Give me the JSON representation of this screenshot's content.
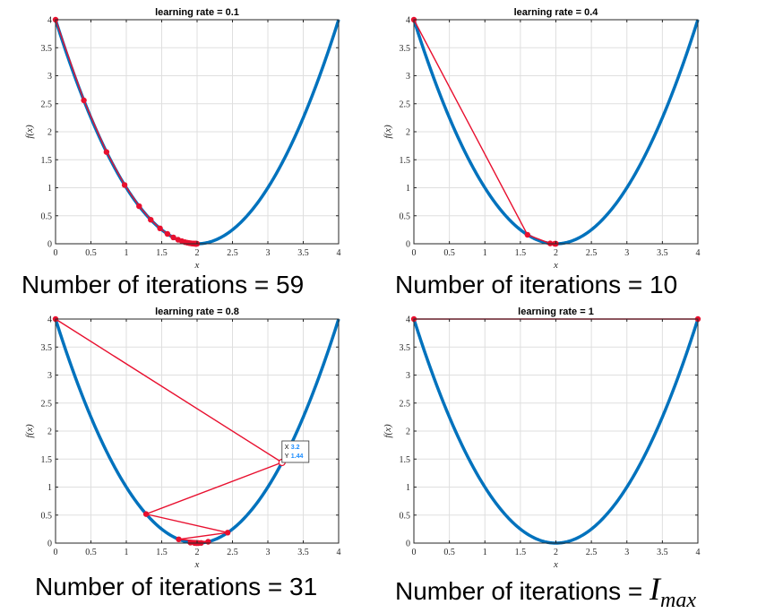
{
  "chart_data": [
    {
      "type": "line",
      "title": "learning rate = 0.1",
      "xlabel": "x",
      "ylabel": "f(x)",
      "xlim": [
        0,
        4
      ],
      "ylim": [
        0,
        4
      ],
      "xticks": [
        "0",
        "0.5",
        "1",
        "1.5",
        "2",
        "2.5",
        "3",
        "3.5",
        "4"
      ],
      "yticks": [
        "0",
        "0.5",
        "1",
        "1.5",
        "2",
        "2.5",
        "3",
        "3.5",
        "4"
      ],
      "grid": true,
      "curve": {
        "function": "(x-2)^2",
        "color": "#0072BD"
      },
      "path": {
        "color": "#E8102F",
        "x": [
          0,
          0.4,
          0.72,
          0.976,
          1.181,
          1.345,
          1.476,
          1.581,
          1.665,
          1.732,
          1.786,
          1.829,
          1.863,
          1.89,
          1.912,
          1.93,
          1.944,
          1.955,
          1.964,
          1.971,
          1.977,
          1.982,
          1.985,
          1.988,
          1.991,
          2.0
        ],
        "y": [
          4,
          2.56,
          1.638,
          1.049,
          0.671,
          0.429,
          0.275,
          0.176,
          0.113,
          0.072,
          0.046,
          0.029,
          0.019,
          0.012,
          0.008,
          0.005,
          0.003,
          0.002,
          0.001,
          0.001,
          0.001,
          0.0,
          0.0,
          0.0,
          0.0,
          0.0
        ]
      },
      "caption": "Number of iterations = 59"
    },
    {
      "type": "line",
      "title": "learning rate = 0.4",
      "xlabel": "x",
      "ylabel": "f(x)",
      "xlim": [
        0,
        4
      ],
      "ylim": [
        0,
        4
      ],
      "xticks": [
        "0",
        "0.5",
        "1",
        "1.5",
        "2",
        "2.5",
        "3",
        "3.5",
        "4"
      ],
      "yticks": [
        "0",
        "0.5",
        "1",
        "1.5",
        "2",
        "2.5",
        "3",
        "3.5",
        "4"
      ],
      "grid": true,
      "curve": {
        "function": "(x-2)^2",
        "color": "#0072BD"
      },
      "path": {
        "color": "#E8102F",
        "x": [
          0,
          1.6,
          1.92,
          1.984,
          1.997,
          2.0
        ],
        "y": [
          4,
          0.16,
          0.006,
          0.0,
          0.0,
          0.0
        ]
      },
      "caption": "Number of iterations = 10"
    },
    {
      "type": "line",
      "title": "learning rate = 0.8",
      "xlabel": "x",
      "ylabel": "f(x)",
      "xlim": [
        0,
        4
      ],
      "ylim": [
        0,
        4
      ],
      "xticks": [
        "0",
        "0.5",
        "1",
        "1.5",
        "2",
        "2.5",
        "3",
        "3.5",
        "4"
      ],
      "yticks": [
        "0",
        "0.5",
        "1",
        "1.5",
        "2",
        "2.5",
        "3",
        "3.5",
        "4"
      ],
      "grid": true,
      "curve": {
        "function": "(x-2)^2",
        "color": "#0072BD"
      },
      "path": {
        "color": "#E8102F",
        "x": [
          0,
          3.2,
          1.28,
          2.432,
          1.741,
          2.156,
          1.907,
          2.056,
          1.966,
          2.02,
          1.988,
          2.0
        ],
        "y": [
          4,
          1.44,
          0.518,
          0.187,
          0.067,
          0.024,
          0.009,
          0.003,
          0.001,
          0.0,
          0.0,
          0.0
        ]
      },
      "datatip": {
        "x_label": "X",
        "x_value": "3.2",
        "y_label": "Y",
        "y_value": "1.44"
      },
      "caption": "Number of iterations = 31"
    },
    {
      "type": "line",
      "title": "learning rate = 1",
      "xlabel": "x",
      "ylabel": "f(x)",
      "xlim": [
        0,
        4
      ],
      "ylim": [
        0,
        4
      ],
      "xticks": [
        "0",
        "0.5",
        "1",
        "1.5",
        "2",
        "2.5",
        "3",
        "3.5",
        "4"
      ],
      "yticks": [
        "0",
        "0.5",
        "1",
        "1.5",
        "2",
        "2.5",
        "3",
        "3.5",
        "4"
      ],
      "grid": true,
      "curve": {
        "function": "(x-2)^2",
        "color": "#0072BD"
      },
      "path": {
        "color": "#E8102F",
        "x": [
          0,
          4
        ],
        "y": [
          4,
          4
        ]
      },
      "caption": "Number of iterations = ",
      "caption_symbol": "I",
      "caption_subscript": "max"
    }
  ]
}
